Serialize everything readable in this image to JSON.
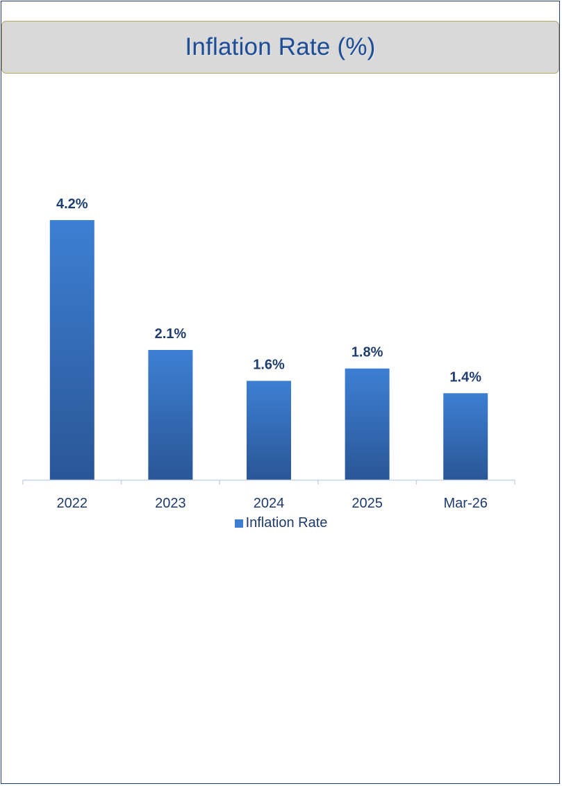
{
  "header": {
    "title": "Inflation Rate (%)"
  },
  "colors": {
    "bar_top": "#3d7fd3",
    "bar_bottom": "#2a5696",
    "data_label": "#1f3e6e",
    "tick_label": "#1e3a6e",
    "axis": "#c8d4e6"
  },
  "chart_data": {
    "type": "bar",
    "categories": [
      "2022",
      "2023",
      "2024",
      "2025",
      "Mar-26"
    ],
    "series": [
      {
        "name": "Inflation Rate",
        "values": [
          4.2,
          2.1,
          1.6,
          1.8,
          1.4
        ]
      }
    ],
    "data_labels": [
      "4.2%",
      "2.1%",
      "1.6%",
      "1.8%",
      "1.4%"
    ],
    "ylim": [
      0,
      4.2
    ],
    "grid": false,
    "legend": "bottom",
    "legend_entries": [
      "Inflation Rate"
    ]
  }
}
